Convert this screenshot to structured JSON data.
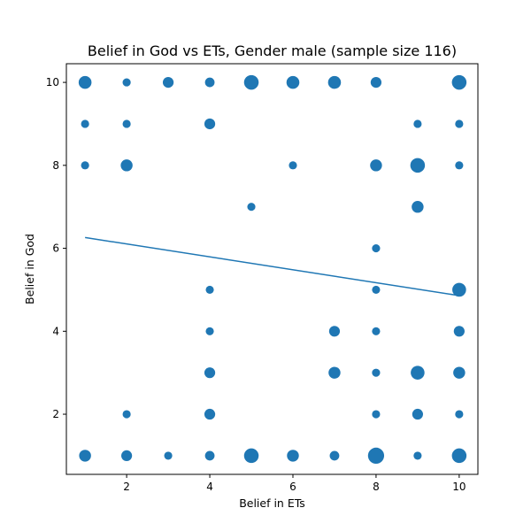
{
  "chart_data": {
    "type": "scatter",
    "title": "Belief in God vs ETs, Gender male (sample size 116)",
    "xlabel": "Belief in ETs",
    "ylabel": "Belief in God",
    "xlim": [
      0.55,
      10.45
    ],
    "ylim": [
      0.55,
      10.45
    ],
    "xticks": [
      2,
      4,
      6,
      8,
      10
    ],
    "yticks": [
      2,
      4,
      6,
      8,
      10
    ],
    "grid": false,
    "color": "#1f77b4",
    "points": [
      {
        "x": 1,
        "y": 10,
        "count": 3
      },
      {
        "x": 2,
        "y": 10,
        "count": 1
      },
      {
        "x": 3,
        "y": 10,
        "count": 2
      },
      {
        "x": 4,
        "y": 10,
        "count": 1.5
      },
      {
        "x": 5,
        "y": 10,
        "count": 4
      },
      {
        "x": 6,
        "y": 10,
        "count": 3
      },
      {
        "x": 7,
        "y": 10,
        "count": 3
      },
      {
        "x": 8,
        "y": 10,
        "count": 2
      },
      {
        "x": 10,
        "y": 10,
        "count": 4
      },
      {
        "x": 1,
        "y": 9,
        "count": 1
      },
      {
        "x": 2,
        "y": 9,
        "count": 1
      },
      {
        "x": 4,
        "y": 9,
        "count": 2
      },
      {
        "x": 9,
        "y": 9,
        "count": 1
      },
      {
        "x": 10,
        "y": 9,
        "count": 1
      },
      {
        "x": 1,
        "y": 8,
        "count": 1
      },
      {
        "x": 2,
        "y": 8,
        "count": 2.5
      },
      {
        "x": 6,
        "y": 8,
        "count": 1
      },
      {
        "x": 8,
        "y": 8,
        "count": 2.5
      },
      {
        "x": 9,
        "y": 8,
        "count": 4
      },
      {
        "x": 10,
        "y": 8,
        "count": 1
      },
      {
        "x": 5,
        "y": 7,
        "count": 1
      },
      {
        "x": 9,
        "y": 7,
        "count": 2.5
      },
      {
        "x": 8,
        "y": 6,
        "count": 1
      },
      {
        "x": 4,
        "y": 5,
        "count": 1
      },
      {
        "x": 8,
        "y": 5,
        "count": 1
      },
      {
        "x": 10,
        "y": 5,
        "count": 3.5
      },
      {
        "x": 4,
        "y": 4,
        "count": 1
      },
      {
        "x": 7,
        "y": 4,
        "count": 2
      },
      {
        "x": 8,
        "y": 4,
        "count": 1
      },
      {
        "x": 10,
        "y": 4,
        "count": 2
      },
      {
        "x": 4,
        "y": 3,
        "count": 2
      },
      {
        "x": 7,
        "y": 3,
        "count": 2.5
      },
      {
        "x": 8,
        "y": 3,
        "count": 1
      },
      {
        "x": 9,
        "y": 3,
        "count": 3.5
      },
      {
        "x": 10,
        "y": 3,
        "count": 2.5
      },
      {
        "x": 2,
        "y": 2,
        "count": 1
      },
      {
        "x": 4,
        "y": 2,
        "count": 2
      },
      {
        "x": 8,
        "y": 2,
        "count": 1
      },
      {
        "x": 9,
        "y": 2,
        "count": 2
      },
      {
        "x": 10,
        "y": 2,
        "count": 1
      },
      {
        "x": 1,
        "y": 1,
        "count": 2.5
      },
      {
        "x": 2,
        "y": 1,
        "count": 2
      },
      {
        "x": 3,
        "y": 1,
        "count": 1
      },
      {
        "x": 4,
        "y": 1,
        "count": 1.5
      },
      {
        "x": 5,
        "y": 1,
        "count": 4
      },
      {
        "x": 6,
        "y": 1,
        "count": 2.5
      },
      {
        "x": 7,
        "y": 1,
        "count": 1.5
      },
      {
        "x": 8,
        "y": 1,
        "count": 5
      },
      {
        "x": 9,
        "y": 1,
        "count": 1
      },
      {
        "x": 10,
        "y": 1,
        "count": 4
      }
    ],
    "trendline": {
      "x": [
        1,
        10
      ],
      "y": [
        6.26,
        4.86
      ]
    }
  }
}
